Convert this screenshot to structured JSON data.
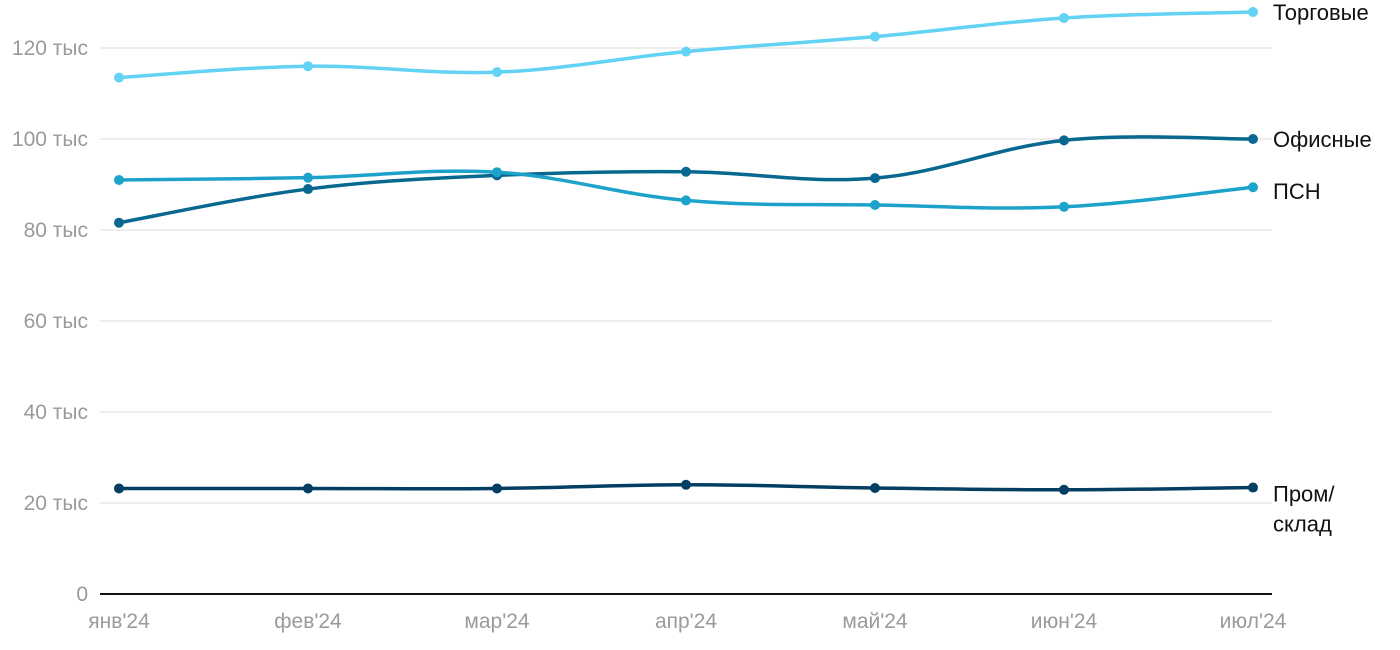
{
  "chart_data": {
    "type": "line",
    "title": "",
    "xlabel": "",
    "ylabel": "",
    "categories": [
      "янв'24",
      "фев'24",
      "мар'24",
      "апр'24",
      "май'24",
      "июн'24",
      "июл'24"
    ],
    "y_ticks": [
      {
        "value": 0,
        "label": "0"
      },
      {
        "value": 20000,
        "label": "20 тыс"
      },
      {
        "value": 40000,
        "label": "40 тыс"
      },
      {
        "value": 60000,
        "label": "60 тыс"
      },
      {
        "value": 80000,
        "label": "80 тыс"
      },
      {
        "value": 100000,
        "label": "100 тыс"
      },
      {
        "value": 120000,
        "label": "120 тыс"
      }
    ],
    "ylim": [
      0,
      120000
    ],
    "grid": true,
    "legend": "direct labels at right end of each line",
    "series": [
      {
        "name": "Торговые",
        "label_lines": [
          "Торговые"
        ],
        "color": "#62d2f5",
        "values": [
          113500,
          116000,
          114700,
          119200,
          122500,
          126600,
          127900
        ]
      },
      {
        "name": "Офисные",
        "label_lines": [
          "Офисные"
        ],
        "color": "#08688f",
        "values": [
          81600,
          89000,
          92000,
          92800,
          91400,
          99700,
          100000
        ]
      },
      {
        "name": "ПСН",
        "label_lines": [
          "ПСН"
        ],
        "color": "#1da3ca",
        "values": [
          91000,
          91500,
          92700,
          86500,
          85500,
          85100,
          89400
        ]
      },
      {
        "name": "Пром/склад",
        "label_lines": [
          "Пром/",
          "склад"
        ],
        "color": "#043f63",
        "values": [
          23200,
          23200,
          23200,
          24000,
          23300,
          22900,
          23400
        ]
      }
    ]
  }
}
